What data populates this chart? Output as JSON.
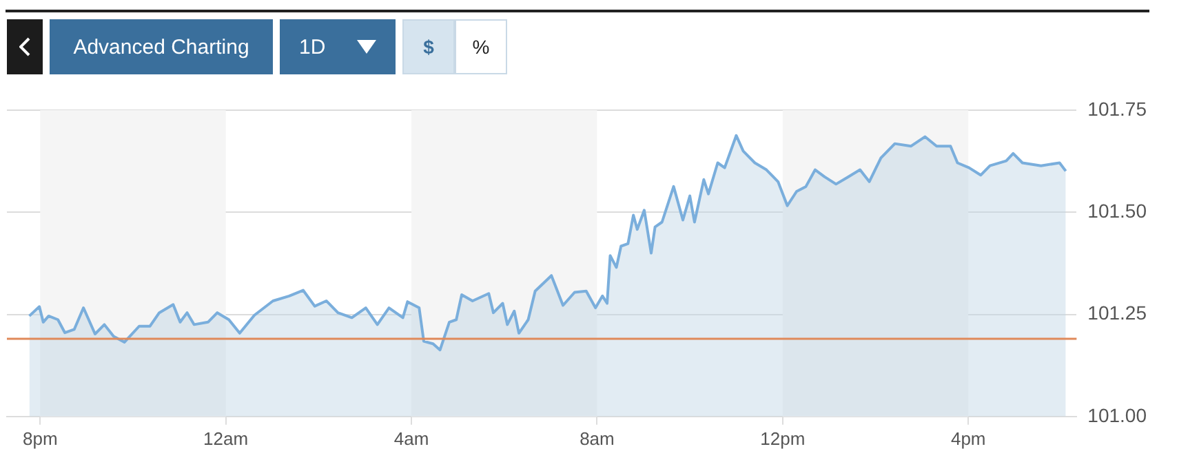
{
  "chart_data": {
    "type": "area",
    "annotations": [
      "Advanced Charting",
      "1D",
      "$",
      "%"
    ],
    "x": [
      "--01-01T19:46",
      "--01-01T19:59",
      "--01-01T20:04",
      "--01-01T20:11",
      "--01-01T20:23",
      "--01-01T20:32",
      "--01-01T20:44",
      "--01-01T20:56",
      "--01-01T21:11",
      "--01-01T21:23",
      "--01-01T21:35",
      "--01-01T21:49",
      "--01-01T22:08",
      "--01-01T22:22",
      "--01-01T22:34",
      "--01-01T22:52",
      "--01-01T23:01",
      "--01-01T23:10",
      "--01-01T23:19",
      "--01-01T23:37",
      "--01-01T23:49",
      "--01-02T00:04",
      "--01-02T00:18",
      "--01-02T00:37",
      "--01-02T01:01",
      "--01-02T01:22",
      "--01-02T01:40",
      "--01-02T01:55",
      "--01-02T02:10",
      "--01-02T02:25",
      "--01-02T02:43",
      "--01-02T03:01",
      "--01-02T03:16",
      "--01-02T03:31",
      "--01-02T03:49",
      "--01-02T03:55",
      "--01-02T04:10",
      "--01-02T04:16",
      "--01-02T04:28",
      "--01-02T04:37",
      "--01-02T04:49",
      "--01-02T04:58",
      "--01-02T05:05",
      "--01-02T05:19",
      "--01-02T05:40",
      "--01-02T05:46",
      "--01-02T05:58",
      "--01-02T06:04",
      "--01-02T06:13",
      "--01-02T06:19",
      "--01-02T06:31",
      "--01-02T06:40",
      "--01-02T07:01",
      "--01-02T07:16",
      "--01-02T07:31",
      "--01-02T07:46",
      "--01-02T07:58",
      "--01-02T08:07",
      "--01-02T08:13",
      "--01-02T08:17",
      "--01-02T08:25",
      "--01-02T08:31",
      "--01-02T08:40",
      "--01-02T08:47",
      "--01-02T08:52",
      "--01-02T09:01",
      "--01-02T09:10",
      "--01-02T09:15",
      "--01-02T09:24",
      "--01-02T09:39",
      "--01-02T09:51",
      "--01-02T10:00",
      "--01-02T10:06",
      "--01-02T10:18",
      "--01-02T10:24",
      "--01-02T10:36",
      "--01-02T10:45",
      "--01-02T11:00",
      "--01-02T11:09",
      "--01-02T11:24",
      "--01-02T11:39",
      "--01-02T11:54",
      "--01-02T12:06",
      "--01-02T12:18",
      "--01-02T12:30",
      "--01-02T12:42",
      "--01-02T12:54",
      "--01-02T13:09",
      "--01-02T13:25",
      "--01-02T13:40",
      "--01-02T13:52",
      "--01-02T14:07",
      "--01-02T14:25",
      "--01-02T14:46",
      "--01-02T15:04",
      "--01-02T15:19",
      "--01-02T15:37",
      "--01-02T15:46",
      "--01-02T16:01",
      "--01-02T16:16",
      "--01-02T16:28",
      "--01-02T16:49",
      "--01-02T16:58",
      "--01-02T17:10",
      "--01-02T17:34",
      "--01-02T17:58",
      "--01-02T18:06"
    ],
    "series": [
      {
        "color": "#7aaedc",
        "values": [
          101.246,
          101.269,
          101.231,
          101.246,
          101.237,
          101.205,
          101.213,
          101.266,
          101.202,
          101.225,
          101.196,
          101.182,
          101.221,
          101.221,
          101.254,
          101.274,
          101.231,
          101.254,
          101.225,
          101.231,
          101.254,
          101.237,
          101.204,
          101.248,
          101.283,
          101.295,
          101.309,
          101.27,
          101.283,
          101.254,
          101.242,
          101.266,
          101.225,
          101.266,
          101.242,
          101.281,
          101.266,
          101.184,
          101.178,
          101.163,
          101.231,
          101.237,
          101.298,
          101.283,
          101.301,
          101.254,
          101.277,
          101.225,
          101.258,
          101.204,
          101.237,
          101.307,
          101.345,
          101.272,
          101.304,
          101.307,
          101.266,
          101.295,
          101.277,
          101.394,
          101.365,
          101.417,
          101.423,
          101.493,
          101.458,
          101.505,
          101.4,
          101.464,
          101.476,
          101.563,
          101.481,
          101.54,
          101.476,
          101.58,
          101.545,
          101.621,
          101.609,
          101.688,
          101.65,
          101.621,
          101.604,
          101.575,
          101.516,
          101.551,
          101.563,
          101.604,
          101.587,
          101.569,
          101.587,
          101.604,
          101.575,
          101.633,
          101.668,
          101.662,
          101.685,
          101.662,
          101.662,
          101.621,
          101.609,
          101.591,
          101.614,
          101.626,
          101.644,
          101.621,
          101.614,
          101.621,
          101.601
        ]
      }
    ],
    "xlim": [
      "--01-01T19:17",
      "--01-02T18:20"
    ],
    "xticks": [
      {
        "value": "--01-01T20:00",
        "label": "8pm"
      },
      {
        "value": "--01-02T00:00",
        "label": "12am"
      },
      {
        "value": "--01-02T04:00",
        "label": "4am"
      },
      {
        "value": "--01-02T08:00",
        "label": "8am"
      },
      {
        "value": "--01-02T12:00",
        "label": "12pm"
      },
      {
        "value": "--01-02T16:00",
        "label": "4pm"
      }
    ],
    "ylim": [
      101.0,
      101.75
    ],
    "yticks": [
      {
        "value": 101,
        "label": "101.00"
      },
      {
        "value": 101.25,
        "label": "101.25"
      },
      {
        "value": 101.5,
        "label": "101.50"
      },
      {
        "value": 101.75,
        "label": "101.75"
      }
    ],
    "grid": "y",
    "legend": false,
    "marker": "none",
    "line_style": "solid",
    "ref_lines": [
      {
        "axis": "y",
        "value": 101.19,
        "color": "#e0895a"
      }
    ],
    "bands": [
      {
        "axis": "x",
        "from": "--01-01T20:00",
        "to": "--01-02T00:00",
        "color": "#f5f5f5"
      },
      {
        "axis": "x",
        "from": "--01-02T04:00",
        "to": "--01-02T08:00",
        "color": "#f5f5f5"
      },
      {
        "axis": "x",
        "from": "--01-02T12:00",
        "to": "--01-02T16:00",
        "color": "#f5f5f5"
      }
    ]
  }
}
